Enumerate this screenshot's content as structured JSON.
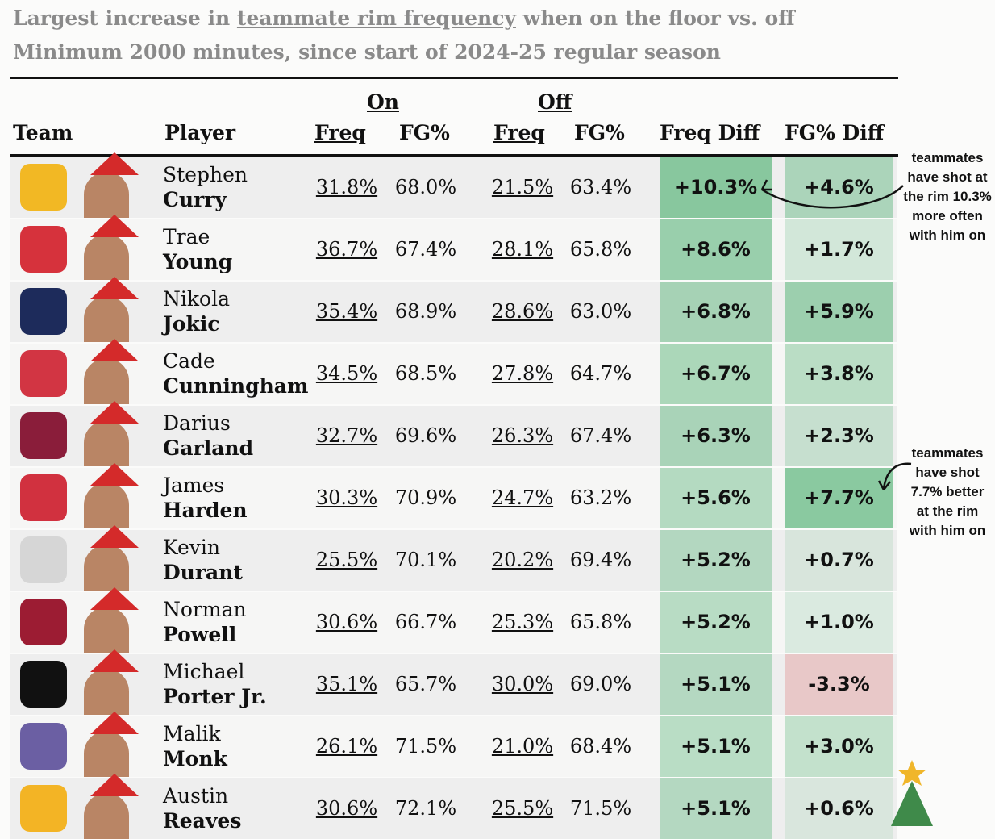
{
  "header": {
    "title_parts": [
      "Largest increase in ",
      "teammate rim frequency",
      " when on the floor vs. off"
    ],
    "subtitle": "Minimum 2000 minutes, since start of 2024-25 regular season"
  },
  "table": {
    "groups": {
      "on": "On",
      "off": "Off"
    },
    "columns": {
      "team": "Team",
      "player": "Player",
      "on_freq": "Freq",
      "on_fg": "FG%",
      "off_freq": "Freq",
      "off_fg": "FG%",
      "freq_diff": "Freq Diff",
      "fg_diff": "FG% Diff"
    },
    "rows": [
      {
        "first": "Stephen",
        "last": "Curry",
        "on_freq": "31.8%",
        "on_fg": "68.0%",
        "off_freq": "21.5%",
        "off_fg": "63.4%",
        "freq_diff": "+10.3%",
        "fg_diff": "+4.6%"
      },
      {
        "first": "Trae",
        "last": "Young",
        "on_freq": "36.7%",
        "on_fg": "67.4%",
        "off_freq": "28.1%",
        "off_fg": "65.8%",
        "freq_diff": "+8.6%",
        "fg_diff": "+1.7%"
      },
      {
        "first": "Nikola",
        "last": "Jokic",
        "on_freq": "35.4%",
        "on_fg": "68.9%",
        "off_freq": "28.6%",
        "off_fg": "63.0%",
        "freq_diff": "+6.8%",
        "fg_diff": "+5.9%"
      },
      {
        "first": "Cade",
        "last": "Cunningham",
        "on_freq": "34.5%",
        "on_fg": "68.5%",
        "off_freq": "27.8%",
        "off_fg": "64.7%",
        "freq_diff": "+6.7%",
        "fg_diff": "+3.8%"
      },
      {
        "first": "Darius",
        "last": "Garland",
        "on_freq": "32.7%",
        "on_fg": "69.6%",
        "off_freq": "26.3%",
        "off_fg": "67.4%",
        "freq_diff": "+6.3%",
        "fg_diff": "+2.3%"
      },
      {
        "first": "James",
        "last": "Harden",
        "on_freq": "30.3%",
        "on_fg": "70.9%",
        "off_freq": "24.7%",
        "off_fg": "63.2%",
        "freq_diff": "+5.6%",
        "fg_diff": "+7.7%"
      },
      {
        "first": "Kevin",
        "last": "Durant",
        "on_freq": "25.5%",
        "on_fg": "70.1%",
        "off_freq": "20.2%",
        "off_fg": "69.4%",
        "freq_diff": "+5.2%",
        "fg_diff": "+0.7%"
      },
      {
        "first": "Norman",
        "last": "Powell",
        "on_freq": "30.6%",
        "on_fg": "66.7%",
        "off_freq": "25.3%",
        "off_fg": "65.8%",
        "freq_diff": "+5.2%",
        "fg_diff": "+1.0%"
      },
      {
        "first": "Michael",
        "last": "Porter Jr.",
        "on_freq": "35.1%",
        "on_fg": "65.7%",
        "off_freq": "30.0%",
        "off_fg": "69.0%",
        "freq_diff": "+5.1%",
        "fg_diff": "-3.3%"
      },
      {
        "first": "Malik",
        "last": "Monk",
        "on_freq": "26.1%",
        "on_fg": "71.5%",
        "off_freq": "21.0%",
        "off_fg": "68.4%",
        "freq_diff": "+5.1%",
        "fg_diff": "+3.0%"
      },
      {
        "first": "Austin",
        "last": "Reaves",
        "on_freq": "30.6%",
        "on_fg": "72.1%",
        "off_freq": "25.5%",
        "off_fg": "71.5%",
        "freq_diff": "+5.1%",
        "fg_diff": "+0.6%"
      }
    ]
  },
  "annotations": [
    {
      "lines": [
        "teammates",
        "have shot at",
        "the rim 10.3%",
        "more often",
        "with him on"
      ]
    },
    {
      "lines": [
        "teammates",
        "have shot",
        "7.7% better",
        "at the rim",
        "with him on"
      ]
    }
  ]
}
